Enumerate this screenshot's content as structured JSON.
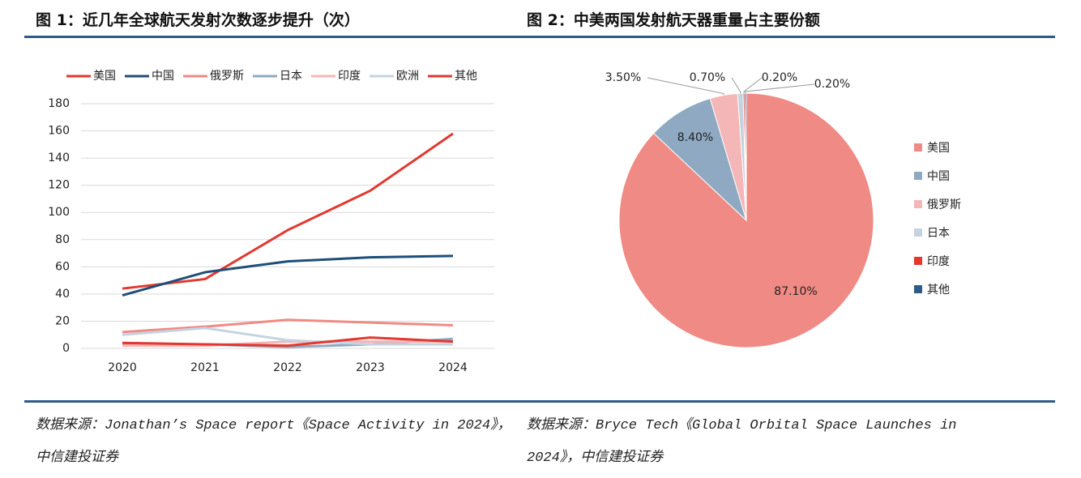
{
  "chart_data": [
    {
      "type": "line",
      "title": "图 1：近几年全球航天发射次数逐步提升（次）",
      "source": "数据来源：Jonathan’s Space report《Space Activity in 2024》，中信建投证券",
      "categories": [
        "2020",
        "2021",
        "2022",
        "2023",
        "2024"
      ],
      "series": [
        {
          "name": "美国",
          "color": "#e2382f",
          "values": [
            44,
            51,
            87,
            116,
            158
          ]
        },
        {
          "name": "中国",
          "color": "#1f4e79",
          "values": [
            39,
            56,
            64,
            67,
            68
          ]
        },
        {
          "name": "俄罗斯",
          "color": "#f08a84",
          "values": [
            12,
            16,
            21,
            19,
            17
          ]
        },
        {
          "name": "日本",
          "color": "#8ea9c1",
          "values": [
            3,
            3,
            1,
            3,
            7
          ]
        },
        {
          "name": "印度",
          "color": "#f4b6b6",
          "values": [
            2,
            2,
            5,
            5,
            5
          ]
        },
        {
          "name": "欧洲",
          "color": "#c5d3e0",
          "values": [
            10,
            15,
            6,
            3,
            3
          ]
        },
        {
          "name": "其他",
          "color": "#e2382f",
          "values": [
            4,
            3,
            2,
            8,
            5
          ]
        }
      ],
      "ylim": [
        0,
        180
      ],
      "yticks": [
        0,
        20,
        40,
        60,
        80,
        100,
        120,
        140,
        160,
        180
      ],
      "grid": true,
      "legend": "top"
    },
    {
      "type": "pie",
      "title": "图 2：中美两国发射航天器重量占主要份额",
      "source": "数据来源：Bryce Tech《Global Orbital Space Launches in 2024》，中信建投证券",
      "categories": [
        "美国",
        "中国",
        "俄罗斯",
        "日本",
        "印度",
        "其他"
      ],
      "values": [
        87.1,
        8.4,
        3.5,
        0.7,
        0.2,
        0.2
      ],
      "value_labels": [
        "87.10%",
        "8.40%",
        "3.50%",
        "0.70%",
        "0.20%",
        "0.20%"
      ],
      "colors": [
        "#f08a84",
        "#8ea9c1",
        "#f4b6b6",
        "#c5d3e0",
        "#e2382f",
        "#2e5b8a"
      ],
      "legend": "right"
    }
  ]
}
